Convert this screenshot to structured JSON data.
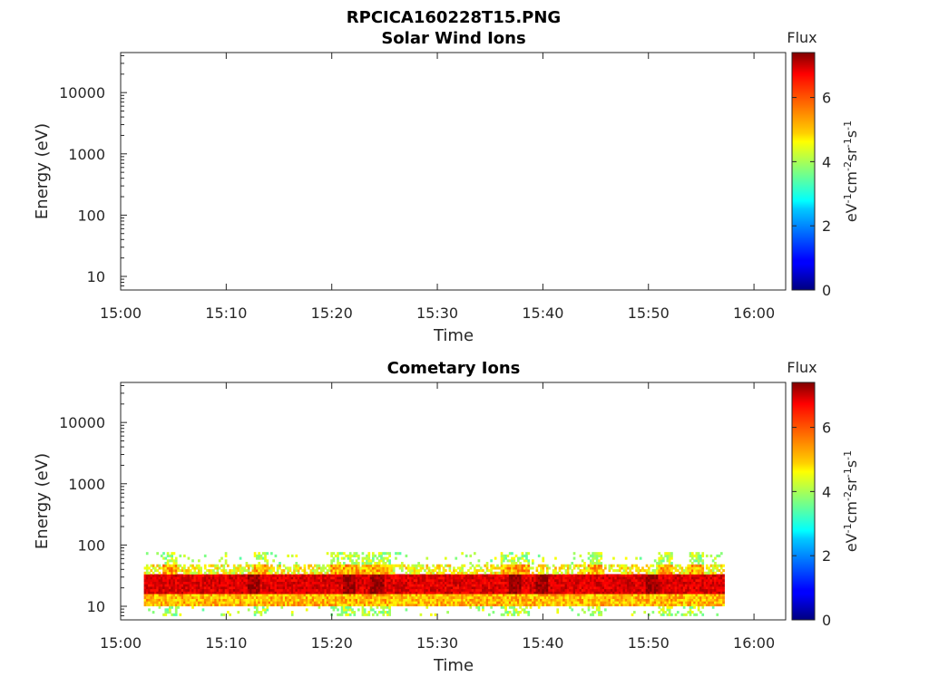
{
  "figure_title": "RPCICA160228T15.PNG",
  "chart_data": [
    {
      "type": "heatmap",
      "title": "Solar Wind Ions",
      "xlabel": "Time",
      "ylabel": "Energy (eV)",
      "x_ticks": [
        "15:00",
        "15:10",
        "15:20",
        "15:30",
        "15:40",
        "15:50",
        "16:00"
      ],
      "x_range_min": [
        0,
        63
      ],
      "y_scale": "log",
      "y_ticks": [
        10,
        100,
        1000,
        10000
      ],
      "y_tick_labels": [
        "10",
        "100",
        "1000",
        "10000"
      ],
      "ylim": [
        6,
        45000
      ],
      "colorbar": {
        "title": "Flux",
        "label": "eV-1cm-2sr-1s-1",
        "range": [
          0,
          7.4
        ],
        "ticks": [
          0,
          2,
          4,
          6
        ],
        "colormap": "jet"
      },
      "data_present": false,
      "data": []
    },
    {
      "type": "heatmap",
      "title": "Cometary Ions",
      "xlabel": "Time",
      "ylabel": "Energy (eV)",
      "x_ticks": [
        "15:00",
        "15:10",
        "15:20",
        "15:30",
        "15:40",
        "15:50",
        "16:00"
      ],
      "x_range_min": [
        0,
        63
      ],
      "y_scale": "log",
      "y_ticks": [
        10,
        100,
        1000,
        10000
      ],
      "y_tick_labels": [
        "10",
        "100",
        "1000",
        "10000"
      ],
      "ylim": [
        6,
        45000
      ],
      "colorbar": {
        "title": "Flux",
        "label": "eV-1cm-2sr-1s-1",
        "range": [
          0,
          7.4
        ],
        "ticks": [
          0,
          2,
          4,
          6
        ],
        "colormap": "jet"
      },
      "data_present": true,
      "data_time_range_min": [
        2.2,
        57.2
      ],
      "data": {
        "description_energy_band_eV": [
          7,
          80
        ],
        "core_band_eV": [
          15,
          32
        ],
        "core_flux": 6.7,
        "edge_flux": 4.5,
        "bursts_min": [
          4.6,
          13.2,
          20.5,
          21.8,
          23.5,
          24.8,
          36.5,
          38,
          44.8,
          51.5,
          54.5
        ],
        "intensified_min": [
          12.5,
          21.5,
          24.2,
          37.2,
          39.8,
          50.3
        ]
      }
    }
  ]
}
